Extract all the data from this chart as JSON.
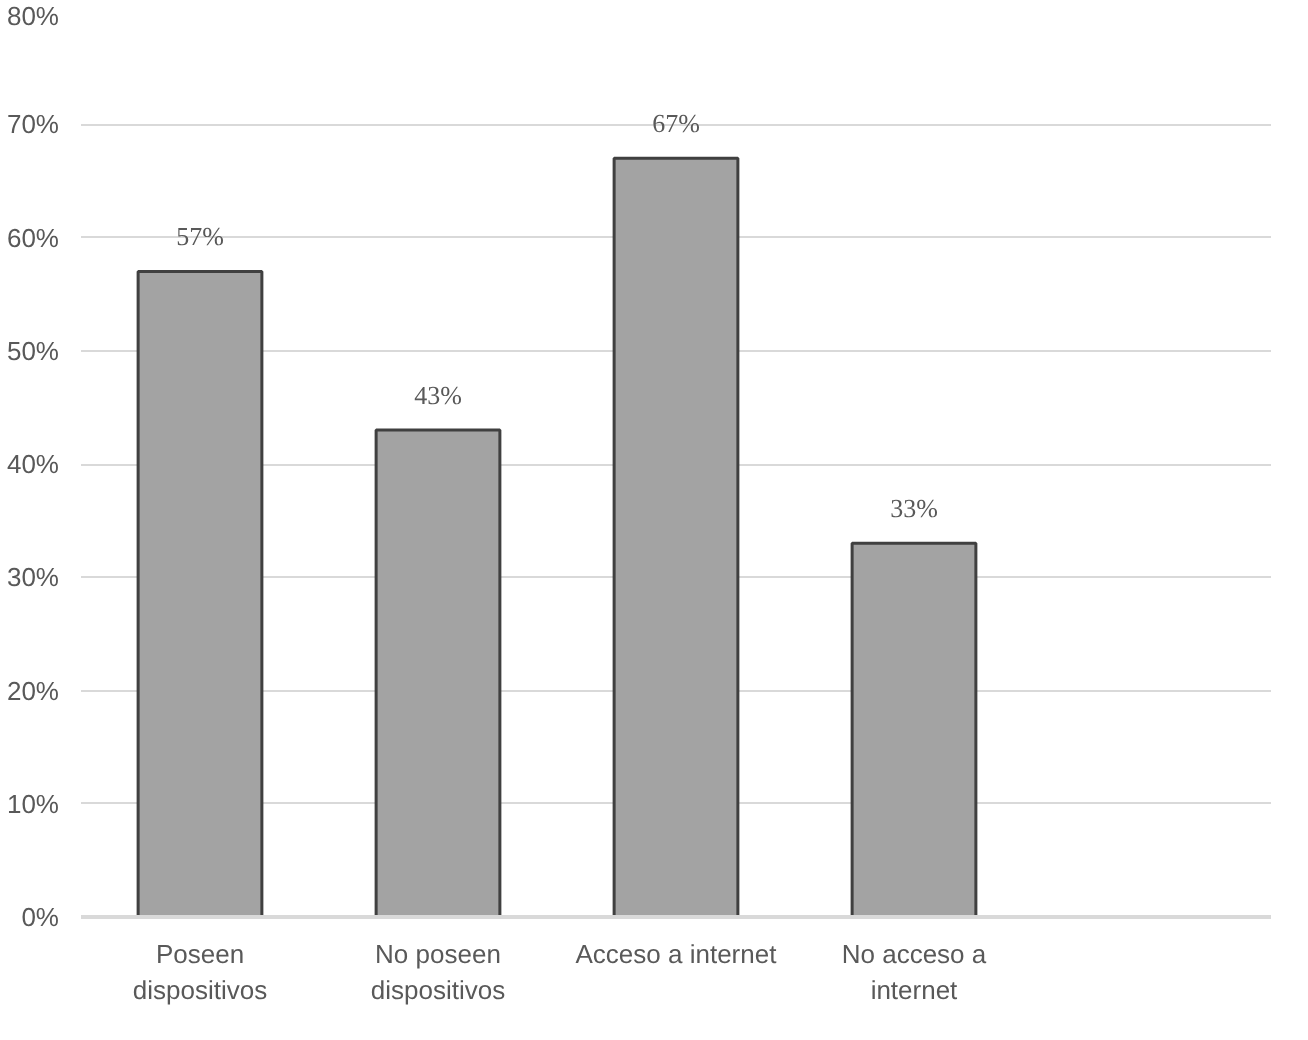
{
  "chart_data": {
    "type": "bar",
    "categories": [
      "Poseen dispositivos",
      "No poseen dispositivos",
      "Acceso a internet",
      "No acceso a internet",
      null
    ],
    "values": [
      57,
      43,
      67,
      33,
      null
    ],
    "color": "#a3a3a3",
    "ylim": [
      0,
      80
    ],
    "yticks": [
      {
        "value": 0,
        "label": "0%"
      },
      {
        "value": 10,
        "label": "10%"
      },
      {
        "value": 20,
        "label": "20%"
      },
      {
        "value": 30,
        "label": "30%"
      },
      {
        "value": 40,
        "label": "40%"
      },
      {
        "value": 50,
        "label": "50%"
      },
      {
        "value": 60,
        "label": "60%"
      },
      {
        "value": 70,
        "label": "70%"
      },
      {
        "value": 80,
        "label": "80%"
      }
    ],
    "value_labels": [
      "57%",
      "43%",
      "67%",
      "33%",
      null
    ],
    "grid": "y"
  }
}
